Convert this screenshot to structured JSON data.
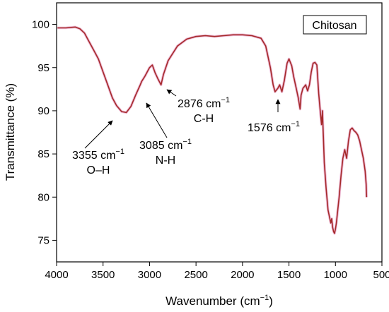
{
  "chart_data": {
    "type": "line",
    "xlabel": "Wavenumber (cm",
    "xlabel_sup": "−1",
    "xlabel_tail": ")",
    "ylabel": "Transmittance (%)",
    "xlim": [
      4000,
      500
    ],
    "ylim": [
      72.5,
      102.5
    ],
    "x_ticks": [
      4000,
      3500,
      3000,
      2500,
      2000,
      1500,
      1000,
      500
    ],
    "y_ticks": [
      75,
      80,
      85,
      90,
      95,
      100
    ],
    "grid": false,
    "legend_position": "top-right",
    "color": "#a52a2a",
    "series": [
      {
        "name": "Chitosan",
        "x": [
          3990,
          3900,
          3800,
          3750,
          3700,
          3650,
          3600,
          3550,
          3500,
          3450,
          3400,
          3355,
          3300,
          3250,
          3200,
          3150,
          3100,
          3085,
          3050,
          3000,
          2970,
          2940,
          2910,
          2876,
          2850,
          2800,
          2700,
          2600,
          2500,
          2400,
          2300,
          2200,
          2100,
          2000,
          1900,
          1800,
          1750,
          1700,
          1670,
          1650,
          1620,
          1600,
          1576,
          1550,
          1520,
          1500,
          1470,
          1450,
          1420,
          1400,
          1380,
          1370,
          1350,
          1320,
          1300,
          1280,
          1260,
          1240,
          1220,
          1200,
          1180,
          1160,
          1150,
          1140,
          1130,
          1120,
          1100,
          1080,
          1060,
          1050,
          1040,
          1030,
          1020,
          1010,
          1000,
          990,
          980,
          960,
          940,
          920,
          900,
          880,
          860,
          840,
          820,
          800,
          780,
          760,
          740,
          720,
          700,
          680,
          670,
          665
        ],
        "y": [
          99.6,
          99.6,
          99.7,
          99.5,
          99.0,
          98.0,
          97.0,
          96.0,
          94.5,
          93.0,
          91.5,
          90.6,
          89.9,
          89.8,
          90.5,
          91.8,
          93.0,
          93.4,
          94.0,
          95.0,
          95.3,
          94.4,
          93.7,
          93.0,
          94.2,
          95.8,
          97.5,
          98.3,
          98.6,
          98.7,
          98.6,
          98.7,
          98.8,
          98.8,
          98.7,
          98.4,
          97.5,
          95.0,
          93.0,
          92.2,
          92.6,
          93.0,
          92.2,
          93.5,
          95.5,
          96.0,
          95.2,
          94.0,
          92.5,
          91.5,
          90.2,
          91.8,
          92.6,
          93.0,
          92.3,
          93.0,
          94.5,
          95.5,
          95.6,
          95.3,
          92.0,
          89.5,
          88.4,
          90.0,
          87.0,
          84.0,
          81.0,
          78.5,
          77.5,
          77.0,
          77.5,
          76.5,
          76.0,
          75.8,
          76.3,
          77.0,
          78.0,
          80.0,
          82.5,
          84.5,
          85.5,
          84.5,
          86.5,
          87.8,
          88.0,
          87.7,
          87.5,
          87.2,
          86.5,
          85.5,
          84.5,
          83.0,
          81.5,
          80.0
        ]
      }
    ],
    "annotations": [
      {
        "line1": "3355 cm",
        "sup": "−1",
        "line2": "O–H",
        "anchor_x": 3355,
        "anchor_y": 90.6
      },
      {
        "line1": "3085 cm",
        "sup": "−1",
        "line2": "N-H",
        "anchor_x": 3085,
        "anchor_y": 93.4
      },
      {
        "line1": "2876 cm",
        "sup": "−1",
        "line2": "C-H",
        "anchor_x": 2876,
        "anchor_y": 93.0
      },
      {
        "line1": "1576 cm",
        "sup": "−1",
        "line2": "",
        "anchor_x": 1576,
        "anchor_y": 92.2
      }
    ]
  }
}
